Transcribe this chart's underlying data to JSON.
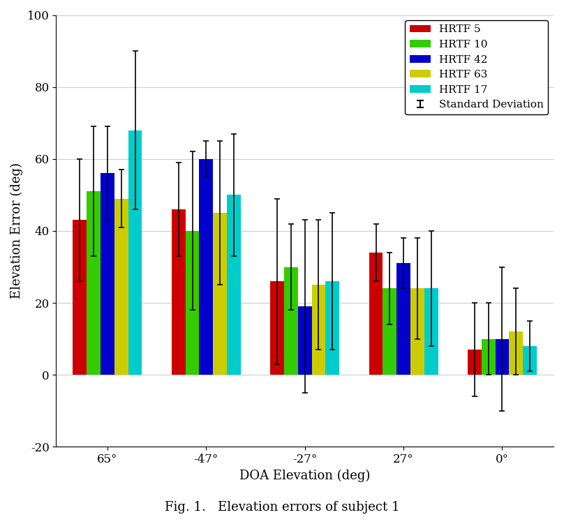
{
  "title": "Fig. 1.   Elevation errors of subject 1",
  "xlabel": "DOA Elevation (deg)",
  "ylabel": "Elevation Error (deg)",
  "ylim": [
    -20,
    100
  ],
  "yticks": [
    -20,
    0,
    20,
    40,
    60,
    80,
    100
  ],
  "groups": [
    "65°",
    "-47°",
    "-27°",
    "27°",
    "0°"
  ],
  "series": [
    "HRTF 5",
    "HRTF 10",
    "HRTF 42",
    "HRTF 63",
    "HRTF 17"
  ],
  "colors": [
    "#cc0000",
    "#33cc00",
    "#0000cc",
    "#cccc00",
    "#00cccc"
  ],
  "bar_values": {
    "HRTF 5": [
      43,
      46,
      26,
      34,
      7
    ],
    "HRTF 10": [
      51,
      40,
      30,
      24,
      10
    ],
    "HRTF 42": [
      56,
      60,
      19,
      31,
      10
    ],
    "HRTF 63": [
      49,
      45,
      25,
      24,
      12
    ],
    "HRTF 17": [
      68,
      50,
      26,
      24,
      8
    ]
  },
  "error_values": {
    "HRTF 5": [
      17,
      13,
      23,
      8,
      13
    ],
    "HRTF 10": [
      18,
      22,
      12,
      10,
      10
    ],
    "HRTF 42": [
      13,
      5,
      24,
      7,
      20
    ],
    "HRTF 63": [
      8,
      20,
      18,
      14,
      12
    ],
    "HRTF 17": [
      22,
      17,
      19,
      16,
      7
    ]
  },
  "background_color": "#ffffff",
  "grid_color": "#cccccc"
}
